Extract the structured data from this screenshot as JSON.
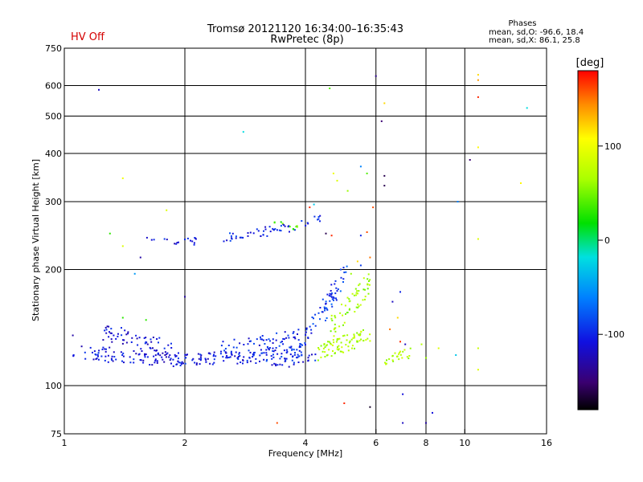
{
  "header": {
    "status": "HV Off",
    "status_color": "#d40000",
    "title_line1": "Tromsø 20121120 16:34:00–16:35:43",
    "title_line2": "RwPretec (8p)"
  },
  "stats": {
    "heading": "Phases",
    "line_o": "mean, sd,O:  -96.6, 18.4",
    "line_x": "mean, sd,X:   86.1, 25.8"
  },
  "colorbar": {
    "unit": "[deg]",
    "range": [
      -180,
      180
    ],
    "ticks": [
      {
        "value": 100,
        "label": "100"
      },
      {
        "value": 0,
        "label": "0"
      },
      {
        "value": -100,
        "label": "-100"
      }
    ]
  },
  "chart_data": {
    "type": "scatter",
    "title": "Tromsø 20121120 16:34:00–16:35:43",
    "subtitle": "RwPretec (8p)",
    "xlabel": "Frequency [MHz]",
    "ylabel": "Stationary phase Virtual Height [km]",
    "xscale": "log",
    "yscale": "log",
    "xlim": [
      1,
      16
    ],
    "ylim": [
      75,
      750
    ],
    "grid": true,
    "xticks": [
      {
        "value": 1,
        "label": "1"
      },
      {
        "value": 2,
        "label": "2"
      },
      {
        "value": 4,
        "label": "4"
      },
      {
        "value": 6,
        "label": "6"
      },
      {
        "value": 8,
        "label": "8"
      },
      {
        "value": 10,
        "label": "10"
      },
      {
        "value": 16,
        "label": "16"
      }
    ],
    "xgrid": [
      2,
      4,
      6,
      8,
      10
    ],
    "yticks": [
      {
        "value": 75,
        "label": "75"
      },
      {
        "value": 100,
        "label": "100"
      },
      {
        "value": 200,
        "label": "200"
      },
      {
        "value": 300,
        "label": "300"
      },
      {
        "value": 400,
        "label": "400"
      },
      {
        "value": 500,
        "label": "500"
      },
      {
        "value": 600,
        "label": "600"
      },
      {
        "value": 750,
        "label": "750"
      }
    ],
    "ygrid": [
      100,
      200,
      300,
      400,
      500,
      600
    ],
    "color_dimension": "phase (deg)",
    "traces": [
      {
        "f1": 1.05,
        "f2": 1.9,
        "h1": 122,
        "h2": 117,
        "phase": -110,
        "spread": 0.045,
        "count": 90
      },
      {
        "f1": 1.9,
        "f2": 3.0,
        "h1": 117,
        "h2": 119,
        "phase": -105,
        "spread": 0.04,
        "count": 90
      },
      {
        "f1": 3.0,
        "f2": 4.0,
        "h1": 119,
        "h2": 125,
        "phase": -100,
        "spread": 0.04,
        "count": 60
      },
      {
        "f1": 1.25,
        "f2": 1.9,
        "h1": 138,
        "h2": 124,
        "phase": -110,
        "spread": 0.05,
        "count": 60
      },
      {
        "f1": 2.4,
        "f2": 3.9,
        "h1": 125,
        "h2": 135,
        "phase": -100,
        "spread": 0.04,
        "count": 50
      },
      {
        "f1": 3.3,
        "f2": 4.3,
        "h1": 113,
        "h2": 118,
        "phase": -105,
        "spread": 0.03,
        "count": 30
      },
      {
        "f1": 4.0,
        "f2": 4.8,
        "h1": 135,
        "h2": 185,
        "phase": -95,
        "spread": 0.05,
        "count": 40
      },
      {
        "f1": 4.4,
        "f2": 5.1,
        "h1": 150,
        "h2": 200,
        "phase": -90,
        "spread": 0.06,
        "count": 25
      },
      {
        "f1": 4.3,
        "f2": 5.8,
        "h1": 122,
        "h2": 135,
        "phase": 70,
        "spread": 0.05,
        "count": 80
      },
      {
        "f1": 4.6,
        "f2": 5.8,
        "h1": 140,
        "h2": 185,
        "phase": 65,
        "spread": 0.07,
        "count": 60
      },
      {
        "f1": 6.3,
        "f2": 7.4,
        "h1": 116,
        "h2": 122,
        "phase": 70,
        "spread": 0.03,
        "count": 25
      },
      {
        "f1": 1.6,
        "f2": 2.2,
        "h1": 242,
        "h2": 236,
        "phase": -110,
        "spread": 0.025,
        "count": 18
      },
      {
        "f1": 2.5,
        "f2": 3.8,
        "h1": 242,
        "h2": 258,
        "phase": -100,
        "spread": 0.03,
        "count": 45
      },
      {
        "f1": 3.3,
        "f2": 3.9,
        "h1": 262,
        "h2": 258,
        "phase": 40,
        "spread": 0.02,
        "count": 10
      },
      {
        "f1": 3.9,
        "f2": 4.5,
        "h1": 262,
        "h2": 275,
        "phase": -100,
        "spread": 0.02,
        "count": 10
      }
    ],
    "points": [
      {
        "x": 1.22,
        "y": 585,
        "phase": -120
      },
      {
        "x": 1.4,
        "y": 345,
        "phase": 100
      },
      {
        "x": 1.3,
        "y": 248,
        "phase": 30
      },
      {
        "x": 1.4,
        "y": 230,
        "phase": 90
      },
      {
        "x": 1.8,
        "y": 285,
        "phase": 90
      },
      {
        "x": 1.5,
        "y": 195,
        "phase": -50
      },
      {
        "x": 2.8,
        "y": 455,
        "phase": -20
      },
      {
        "x": 4.6,
        "y": 590,
        "phase": 40
      },
      {
        "x": 4.7,
        "y": 355,
        "phase": 100
      },
      {
        "x": 4.8,
        "y": 340,
        "phase": 90
      },
      {
        "x": 5.1,
        "y": 320,
        "phase": 60
      },
      {
        "x": 5.5,
        "y": 370,
        "phase": -60
      },
      {
        "x": 5.7,
        "y": 355,
        "phase": 40
      },
      {
        "x": 5.9,
        "y": 290,
        "phase": 160
      },
      {
        "x": 6.0,
        "y": 635,
        "phase": -140
      },
      {
        "x": 6.3,
        "y": 540,
        "phase": 120
      },
      {
        "x": 6.2,
        "y": 485,
        "phase": -150
      },
      {
        "x": 6.3,
        "y": 350,
        "phase": -160
      },
      {
        "x": 6.3,
        "y": 330,
        "phase": -160
      },
      {
        "x": 8.0,
        "y": 80,
        "phase": -130
      },
      {
        "x": 7.0,
        "y": 80,
        "phase": -120
      },
      {
        "x": 8.3,
        "y": 85,
        "phase": -110
      },
      {
        "x": 3.4,
        "y": 80,
        "phase": 160
      },
      {
        "x": 5.0,
        "y": 90,
        "phase": 170
      },
      {
        "x": 5.8,
        "y": 88,
        "phase": -170
      },
      {
        "x": 7.0,
        "y": 95,
        "phase": -110
      },
      {
        "x": 9.6,
        "y": 300,
        "phase": -60
      },
      {
        "x": 10.3,
        "y": 385,
        "phase": -150
      },
      {
        "x": 10.8,
        "y": 640,
        "phase": 120
      },
      {
        "x": 10.8,
        "y": 620,
        "phase": 140
      },
      {
        "x": 10.8,
        "y": 560,
        "phase": 170
      },
      {
        "x": 10.8,
        "y": 415,
        "phase": 110
      },
      {
        "x": 10.8,
        "y": 240,
        "phase": 90
      },
      {
        "x": 10.8,
        "y": 125,
        "phase": 80
      },
      {
        "x": 10.8,
        "y": 110,
        "phase": 90
      },
      {
        "x": 13.8,
        "y": 335,
        "phase": 110
      },
      {
        "x": 14.3,
        "y": 525,
        "phase": -20
      },
      {
        "x": 9.5,
        "y": 120,
        "phase": -30
      },
      {
        "x": 8.6,
        "y": 125,
        "phase": 90
      },
      {
        "x": 7.8,
        "y": 128,
        "phase": 70
      },
      {
        "x": 8.0,
        "y": 118,
        "phase": 60
      },
      {
        "x": 1.6,
        "y": 148,
        "phase": 30
      },
      {
        "x": 1.05,
        "y": 135,
        "phase": -130
      },
      {
        "x": 1.4,
        "y": 150,
        "phase": 30
      },
      {
        "x": 1.55,
        "y": 215,
        "phase": -130
      },
      {
        "x": 2.0,
        "y": 170,
        "phase": -130
      },
      {
        "x": 4.9,
        "y": 200,
        "phase": -90
      },
      {
        "x": 5.2,
        "y": 195,
        "phase": 60
      },
      {
        "x": 5.5,
        "y": 205,
        "phase": -90
      },
      {
        "x": 5.6,
        "y": 190,
        "phase": 80
      },
      {
        "x": 5.4,
        "y": 210,
        "phase": 120
      },
      {
        "x": 5.8,
        "y": 215,
        "phase": 150
      },
      {
        "x": 5.7,
        "y": 250,
        "phase": 160
      },
      {
        "x": 5.5,
        "y": 245,
        "phase": -100
      },
      {
        "x": 6.9,
        "y": 175,
        "phase": -100
      },
      {
        "x": 6.6,
        "y": 165,
        "phase": -120
      },
      {
        "x": 6.8,
        "y": 150,
        "phase": 120
      },
      {
        "x": 6.5,
        "y": 140,
        "phase": 150
      },
      {
        "x": 6.9,
        "y": 130,
        "phase": 170
      },
      {
        "x": 7.1,
        "y": 128,
        "phase": -120
      },
      {
        "x": 4.1,
        "y": 290,
        "phase": 170
      },
      {
        "x": 4.2,
        "y": 295,
        "phase": -30
      },
      {
        "x": 4.5,
        "y": 248,
        "phase": -160
      },
      {
        "x": 4.65,
        "y": 245,
        "phase": 170
      }
    ]
  }
}
